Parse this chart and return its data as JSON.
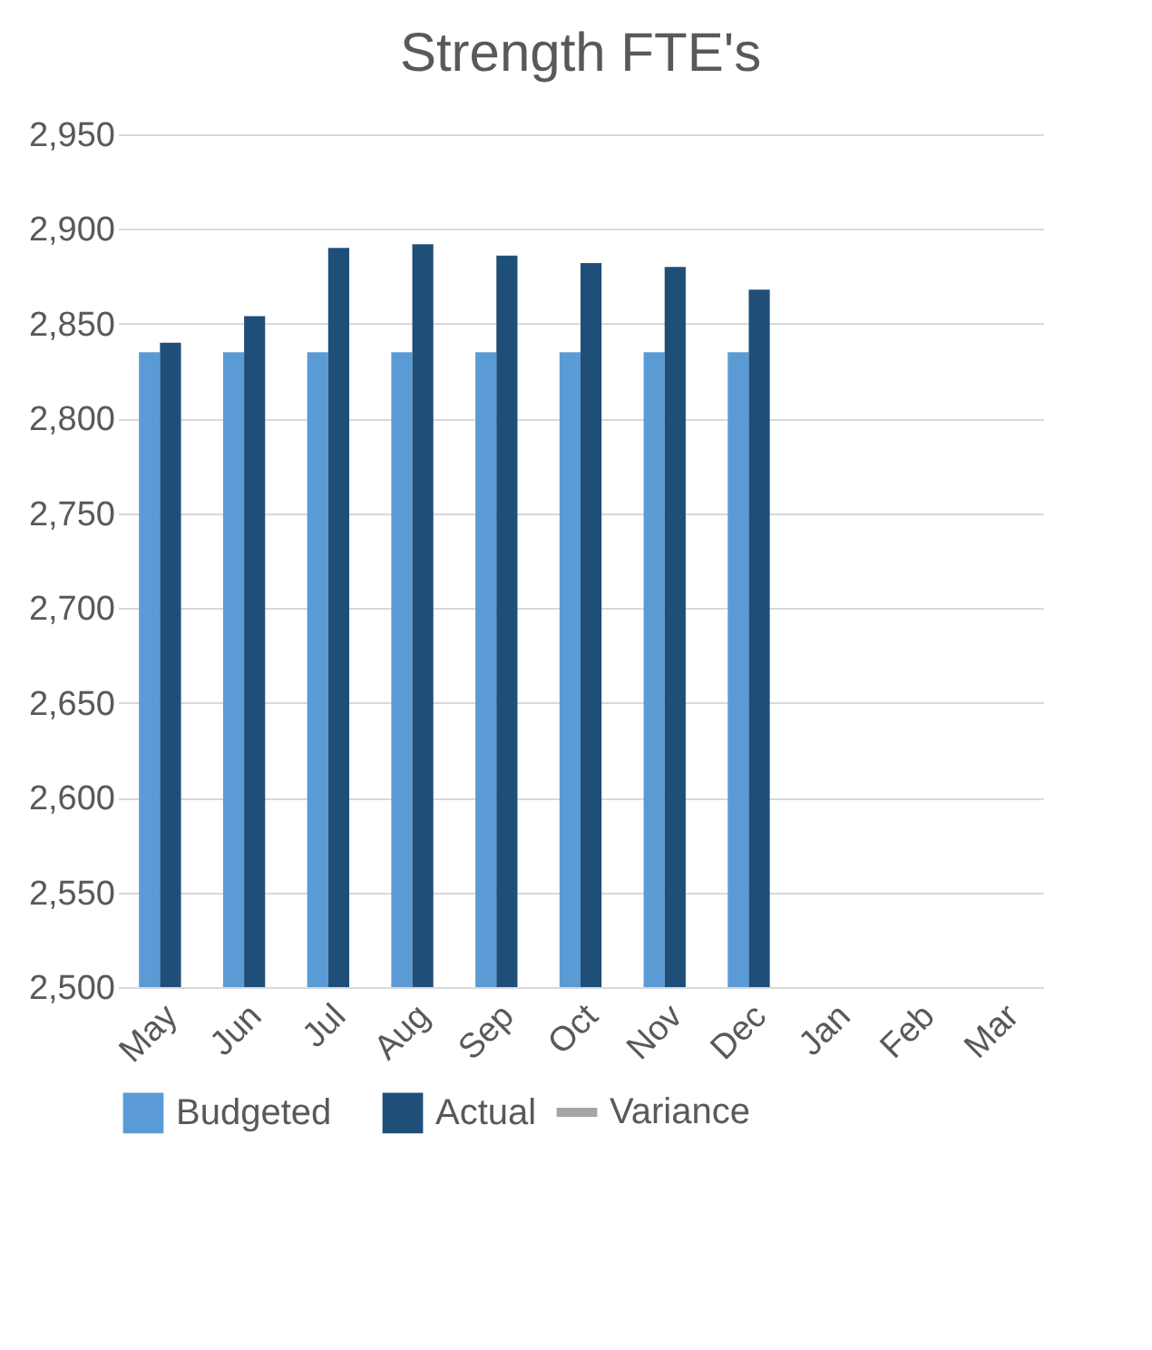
{
  "chart_data": {
    "type": "bar",
    "title": "Strength FTE's",
    "categories": [
      "May",
      "Jun",
      "Jul",
      "Aug",
      "Sep",
      "Oct",
      "Nov",
      "Dec",
      "Jan",
      "Feb",
      "Mar"
    ],
    "series": [
      {
        "name": "Budgeted",
        "color": "#5b9bd5",
        "values": [
          2835,
          2835,
          2835,
          2835,
          2835,
          2835,
          2835,
          2835,
          null,
          null,
          null
        ]
      },
      {
        "name": "Actual",
        "color": "#1f4e79",
        "values": [
          2840,
          2854,
          2890,
          2892,
          2886,
          2882,
          2880,
          2868,
          null,
          null,
          null
        ]
      },
      {
        "name": "Variance",
        "color": "#a5a5a5",
        "type": "line",
        "values": [
          null,
          null,
          null,
          null,
          null,
          null,
          null,
          null,
          null,
          null,
          null
        ]
      }
    ],
    "ylim": [
      2500,
      2950
    ],
    "yticks": [
      {
        "value": 2500,
        "label": "2,500"
      },
      {
        "value": 2550,
        "label": "2,550"
      },
      {
        "value": 2600,
        "label": "2,600"
      },
      {
        "value": 2650,
        "label": "2,650"
      },
      {
        "value": 2700,
        "label": "2,700"
      },
      {
        "value": 2750,
        "label": "2,750"
      },
      {
        "value": 2800,
        "label": "2,800"
      },
      {
        "value": 2850,
        "label": "2,850"
      },
      {
        "value": 2900,
        "label": "2,900"
      },
      {
        "value": 2950,
        "label": "2,950"
      }
    ],
    "grid": "y",
    "legend": "bottom"
  }
}
